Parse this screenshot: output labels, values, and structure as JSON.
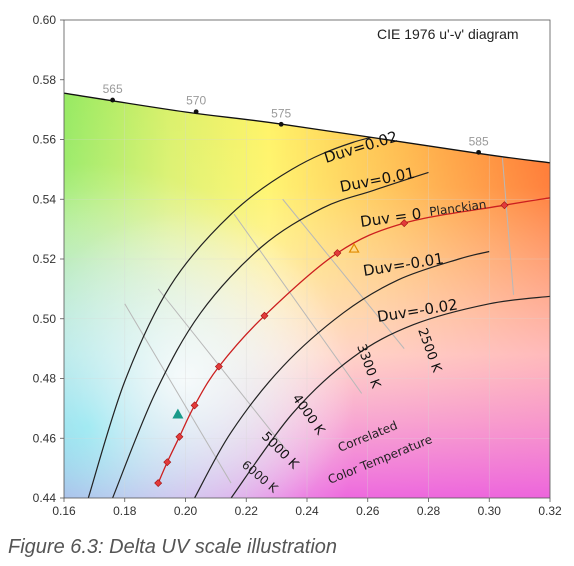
{
  "caption": "Figure 6.3: Delta UV scale illustration",
  "chart_data": {
    "type": "line",
    "title": "CIE 1976 u'-v' diagram",
    "xlim": [
      0.16,
      0.32
    ],
    "ylim": [
      0.44,
      0.6
    ],
    "x_ticks": [
      "0.16",
      "0.18",
      "0.20",
      "0.22",
      "0.24",
      "0.26",
      "0.28",
      "0.30",
      "0.32"
    ],
    "y_ticks": [
      "0.44",
      "0.46",
      "0.48",
      "0.50",
      "0.52",
      "0.54",
      "0.56",
      "0.58",
      "0.60"
    ],
    "spectral_locus": {
      "points": [
        [
          0.16,
          0.5755
        ],
        [
          0.2,
          0.5692
        ],
        [
          0.232,
          0.5651
        ],
        [
          0.296,
          0.5554
        ],
        [
          0.32,
          0.5522
        ]
      ],
      "wavelength_markers": [
        {
          "label": "565",
          "x": 0.176,
          "y": 0.5732
        },
        {
          "label": "570",
          "x": 0.2035,
          "y": 0.5693
        },
        {
          "label": "575",
          "x": 0.2315,
          "y": 0.5651
        },
        {
          "label": "585",
          "x": 0.2965,
          "y": 0.5557
        }
      ]
    },
    "series": [
      {
        "name": "Duv=0.02",
        "x": [
          0.168,
          0.18,
          0.195,
          0.215,
          0.235,
          0.255,
          0.28
        ],
        "y": [
          0.44,
          0.479,
          0.511,
          0.535,
          0.55,
          0.559,
          0.565
        ]
      },
      {
        "name": "Duv=0.01",
        "x": [
          0.176,
          0.19,
          0.205,
          0.225,
          0.245,
          0.262,
          0.28
        ],
        "y": [
          0.44,
          0.475,
          0.502,
          0.524,
          0.537,
          0.543,
          0.549
        ]
      },
      {
        "name": "Duv = 0",
        "x": [
          0.191,
          0.194,
          0.198,
          0.203,
          0.211,
          0.226,
          0.25,
          0.272,
          0.305,
          0.32
        ],
        "y": [
          0.445,
          0.452,
          0.4605,
          0.471,
          0.484,
          0.501,
          0.522,
          0.532,
          0.538,
          0.5405
        ]
      },
      {
        "name": "Duv=-0.01",
        "x": [
          0.203,
          0.215,
          0.232,
          0.252,
          0.27,
          0.29,
          0.3
        ],
        "y": [
          0.44,
          0.462,
          0.484,
          0.502,
          0.513,
          0.52,
          0.5225
        ]
      },
      {
        "name": "Duv=-0.02",
        "x": [
          0.215,
          0.235,
          0.255,
          0.275,
          0.3,
          0.32
        ],
        "y": [
          0.44,
          0.468,
          0.487,
          0.498,
          0.505,
          0.5075
        ]
      }
    ],
    "planckian_markers": {
      "label": "Planckian",
      "points": [
        [
          0.191,
          0.445
        ],
        [
          0.194,
          0.452
        ],
        [
          0.198,
          0.4605
        ],
        [
          0.203,
          0.471
        ],
        [
          0.211,
          0.484
        ],
        [
          0.226,
          0.501
        ],
        [
          0.25,
          0.522
        ],
        [
          0.272,
          0.532
        ],
        [
          0.305,
          0.538
        ]
      ]
    },
    "isotemperature_lines": [
      {
        "label": "2500 K",
        "x": [
          0.304,
          0.308
        ],
        "y": [
          0.558,
          0.508
        ]
      },
      {
        "label": "3300 K",
        "x": [
          0.232,
          0.272
        ],
        "y": [
          0.54,
          0.49
        ]
      },
      {
        "label": "4000 K",
        "x": [
          0.216,
          0.258
        ],
        "y": [
          0.535,
          0.475
        ]
      },
      {
        "label": "5000 K",
        "x": [
          0.191,
          0.234
        ],
        "y": [
          0.51,
          0.455
        ]
      },
      {
        "label": "6000 K",
        "x": [
          0.18,
          0.215
        ],
        "y": [
          0.505,
          0.445
        ]
      }
    ],
    "other_markers": [
      {
        "shape": "triangle",
        "color": "#e08a00",
        "x": 0.2555,
        "y": 0.5235
      },
      {
        "shape": "triangle",
        "color": "#1a9a8a",
        "x": 0.1975,
        "y": 0.468
      }
    ],
    "annotation": [
      "Correlated",
      "Color Temperature"
    ],
    "colors": {
      "locus": "#111111",
      "duv_lines": "#222222",
      "planckian": "#cc1f1f",
      "isotemp": "#b8b8b8"
    }
  }
}
